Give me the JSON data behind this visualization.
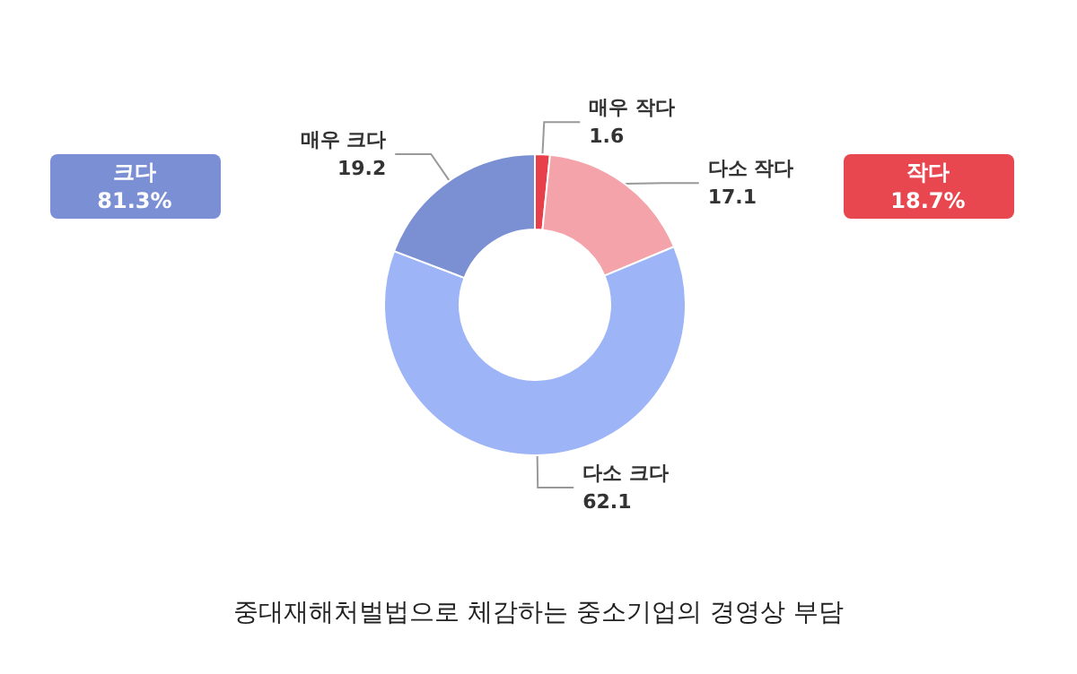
{
  "chart_data": {
    "type": "donut",
    "title": "중대재해처벌법으로 체감하는 중소기업의 경영상 부담",
    "categories": [
      "매우 작다",
      "다소 작다",
      "다소 크다",
      "매우 크다"
    ],
    "values": [
      1.6,
      17.1,
      62.1,
      19.2
    ],
    "colors": [
      "#e8404a",
      "#f5a3aa",
      "#9db4f7",
      "#7b90d2"
    ],
    "data_labels": true,
    "legend": false,
    "annotations": [
      "크다\n81.3%",
      "작다\n18.7%"
    ]
  }
}
